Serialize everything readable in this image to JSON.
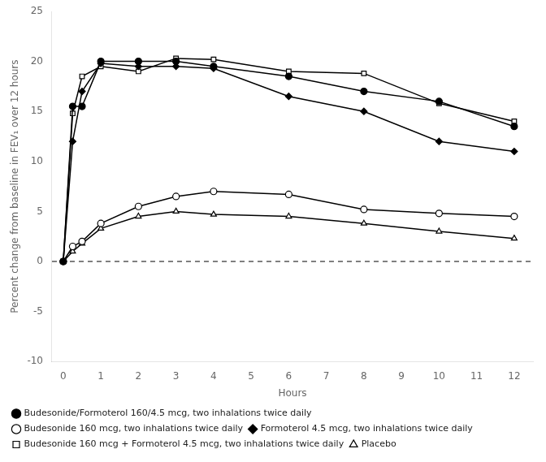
{
  "chart_data": {
    "type": "line",
    "x_label": "Hours",
    "y_label": "Percent change from baseline in FEV₁ over 12 hours",
    "xlim": [
      -0.3,
      12.5
    ],
    "ylim": [
      -10,
      25
    ],
    "xticks": [
      0,
      1,
      2,
      3,
      4,
      5,
      6,
      7,
      8,
      9,
      10,
      11,
      12
    ],
    "yticks": [
      -10,
      -5,
      0,
      5,
      10,
      15,
      20,
      25
    ],
    "grid": false,
    "legend": "bottom",
    "annotations": [
      {
        "y": 0,
        "line_style": "dashed",
        "color": "#000000"
      }
    ],
    "series": [
      {
        "name": "Budesonide/Formoterol 160/4.5 mcg, two inhalations twice daily",
        "color": "#000000",
        "marker": "circle",
        "x": [
          0,
          0.25,
          0.5,
          1,
          2,
          3,
          4,
          6,
          8,
          10,
          12
        ],
        "values": [
          0,
          15.5,
          15.5,
          20.0,
          20.0,
          20.0,
          19.5,
          18.5,
          17.0,
          16.0,
          13.5
        ]
      },
      {
        "name": "Budesonide 160 mcg, two inhalations twice daily",
        "color": "#000000",
        "marker": "open-circle",
        "x": [
          0,
          0.25,
          0.5,
          1,
          2,
          3,
          4,
          6,
          8,
          10,
          12
        ],
        "values": [
          0,
          1.5,
          2.0,
          3.8,
          5.5,
          6.5,
          7.0,
          6.7,
          5.2,
          4.8,
          4.5
        ]
      },
      {
        "name": "Formoterol 4.5 mcg, two inhalations twice daily",
        "color": "#000000",
        "marker": "diamond",
        "x": [
          0,
          0.25,
          0.5,
          1,
          2,
          3,
          4,
          6,
          8,
          10,
          12
        ],
        "values": [
          0,
          12.0,
          17.0,
          19.8,
          19.5,
          19.5,
          19.3,
          16.5,
          15.0,
          12.0,
          11.0
        ]
      },
      {
        "name": "Budesonide 160 mcg + Formoterol 4.5 mcg, two inhalations twice daily",
        "color": "#000000",
        "marker": "open-square",
        "x": [
          0,
          0.25,
          0.5,
          1,
          2,
          3,
          4,
          6,
          8,
          10,
          12
        ],
        "values": [
          0,
          14.8,
          18.5,
          19.5,
          19.0,
          20.3,
          20.2,
          19.0,
          18.8,
          15.8,
          14.0
        ]
      },
      {
        "name": "Placebo",
        "color": "#000000",
        "marker": "open-triangle",
        "x": [
          0,
          0.25,
          0.5,
          1,
          2,
          3,
          4,
          6,
          8,
          10,
          12
        ],
        "values": [
          0,
          1.0,
          1.8,
          3.3,
          4.5,
          5.0,
          4.7,
          4.5,
          3.8,
          3.0,
          2.3
        ]
      }
    ]
  }
}
